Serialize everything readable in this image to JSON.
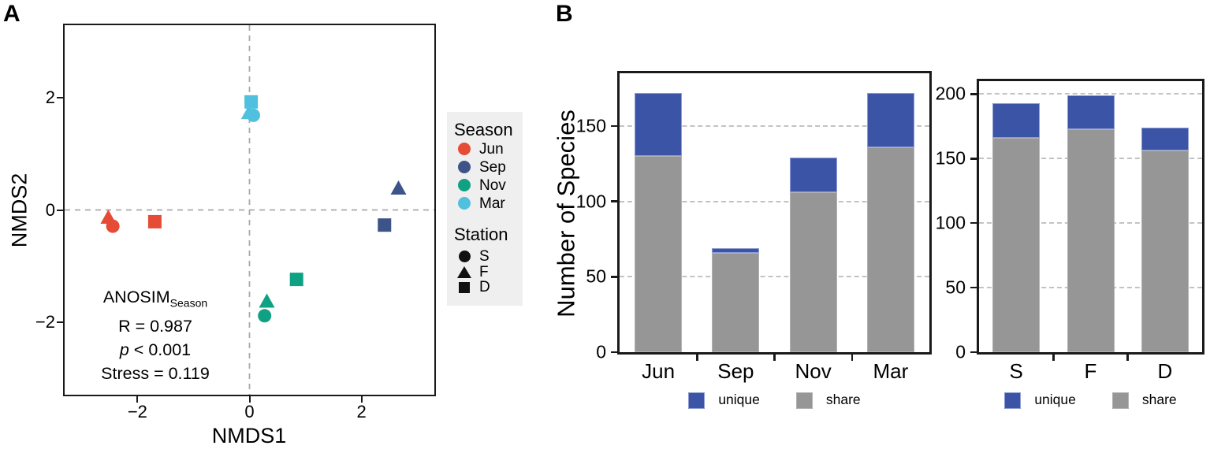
{
  "figure": {
    "panel_a_label": "A",
    "panel_b_label": "B"
  },
  "chart_data": [
    {
      "id": "nmds_scatter",
      "panel": "A",
      "type": "scatter",
      "xlabel": "NMDS1",
      "ylabel": "NMDS2",
      "xlim": [
        -3.3,
        3.3
      ],
      "ylim": [
        -3.3,
        3.3
      ],
      "x_ticks": [
        -2,
        0,
        2
      ],
      "y_ticks": [
        2,
        0,
        -2
      ],
      "reference_lines": {
        "x": 0,
        "y": 0,
        "style": "dashed gray"
      },
      "annotation": {
        "title": "ANOSIM",
        "title_subscript": "Season",
        "lines": [
          "R = 0.987",
          "p < 0.001",
          "Stress = 0.119"
        ]
      },
      "legend": {
        "season_title": "Season",
        "seasons": [
          {
            "label": "Jun",
            "color": "#E64B35"
          },
          {
            "label": "Sep",
            "color": "#3C5488"
          },
          {
            "label": "Nov",
            "color": "#0FA183"
          },
          {
            "label": "Mar",
            "color": "#4FC0DE"
          }
        ],
        "station_title": "Station",
        "stations": [
          {
            "label": "S",
            "shape": "circle"
          },
          {
            "label": "F",
            "shape": "triangle"
          },
          {
            "label": "D",
            "shape": "square"
          }
        ],
        "background": "#efefef"
      },
      "points": [
        {
          "season": "Jun",
          "station": "F",
          "shape": "triangle",
          "color": "#E64B35",
          "x": -2.52,
          "y": -0.14
        },
        {
          "season": "Jun",
          "station": "S",
          "shape": "circle",
          "color": "#E64B35",
          "x": -2.44,
          "y": -0.29
        },
        {
          "season": "Jun",
          "station": "D",
          "shape": "square",
          "color": "#E64B35",
          "x": -1.69,
          "y": -0.21
        },
        {
          "season": "Sep",
          "station": "F",
          "shape": "triangle",
          "color": "#3C5488",
          "x": 2.66,
          "y": 0.38
        },
        {
          "season": "Sep",
          "station": "D",
          "shape": "square",
          "color": "#3C5488",
          "x": 2.41,
          "y": -0.27
        },
        {
          "season": "Nov",
          "station": "D",
          "shape": "square",
          "color": "#0FA183",
          "x": 0.84,
          "y": -1.24
        },
        {
          "season": "Nov",
          "station": "F",
          "shape": "triangle",
          "color": "#0FA183",
          "x": 0.31,
          "y": -1.64
        },
        {
          "season": "Nov",
          "station": "S",
          "shape": "circle",
          "color": "#0FA183",
          "x": 0.27,
          "y": -1.89
        },
        {
          "season": "Mar",
          "station": "D",
          "shape": "square",
          "color": "#4FC0DE",
          "x": 0.03,
          "y": 1.93
        },
        {
          "season": "Mar",
          "station": "F",
          "shape": "triangle",
          "color": "#4FC0DE",
          "x": -0.01,
          "y": 1.73
        },
        {
          "season": "Mar",
          "station": "S",
          "shape": "circle",
          "color": "#4FC0DE",
          "x": 0.07,
          "y": 1.69
        }
      ]
    },
    {
      "id": "species_by_season",
      "panel": "B",
      "type": "bar",
      "stacked": true,
      "ylabel": "Number of Species",
      "categories": [
        "Jun",
        "Sep",
        "Nov",
        "Mar"
      ],
      "series": [
        {
          "name": "share",
          "color": "#969696",
          "border": "#b2b2b2",
          "values": [
            130,
            66,
            106,
            136
          ]
        },
        {
          "name": "unique",
          "color": "#3B54A6",
          "border": "#8d9cd2",
          "values": [
            42,
            3,
            23,
            36
          ]
        }
      ],
      "totals": [
        172,
        69,
        129,
        172
      ],
      "y_ticks": [
        0,
        50,
        100,
        150
      ],
      "ylim": [
        0,
        185
      ],
      "grid": "dashed horizontal",
      "legend": [
        {
          "label": "unique",
          "color": "#3B54A6",
          "border": "#8d9cd2"
        },
        {
          "label": "share",
          "color": "#969696",
          "border": "#b2b2b2"
        }
      ]
    },
    {
      "id": "species_by_station",
      "panel": "B",
      "type": "bar",
      "stacked": true,
      "categories": [
        "S",
        "F",
        "D"
      ],
      "series": [
        {
          "name": "share",
          "color": "#969696",
          "border": "#b2b2b2",
          "values": [
            166,
            173,
            156
          ]
        },
        {
          "name": "unique",
          "color": "#3B54A6",
          "border": "#8d9cd2",
          "values": [
            27,
            26,
            18
          ]
        }
      ],
      "totals": [
        193,
        199,
        174
      ],
      "y_ticks": [
        0,
        50,
        100,
        150,
        200
      ],
      "ylim": [
        0,
        210
      ],
      "grid": "dashed horizontal",
      "legend": [
        {
          "label": "unique",
          "color": "#3B54A6",
          "border": "#8d9cd2"
        },
        {
          "label": "share",
          "color": "#969696",
          "border": "#b2b2b2"
        }
      ]
    }
  ]
}
